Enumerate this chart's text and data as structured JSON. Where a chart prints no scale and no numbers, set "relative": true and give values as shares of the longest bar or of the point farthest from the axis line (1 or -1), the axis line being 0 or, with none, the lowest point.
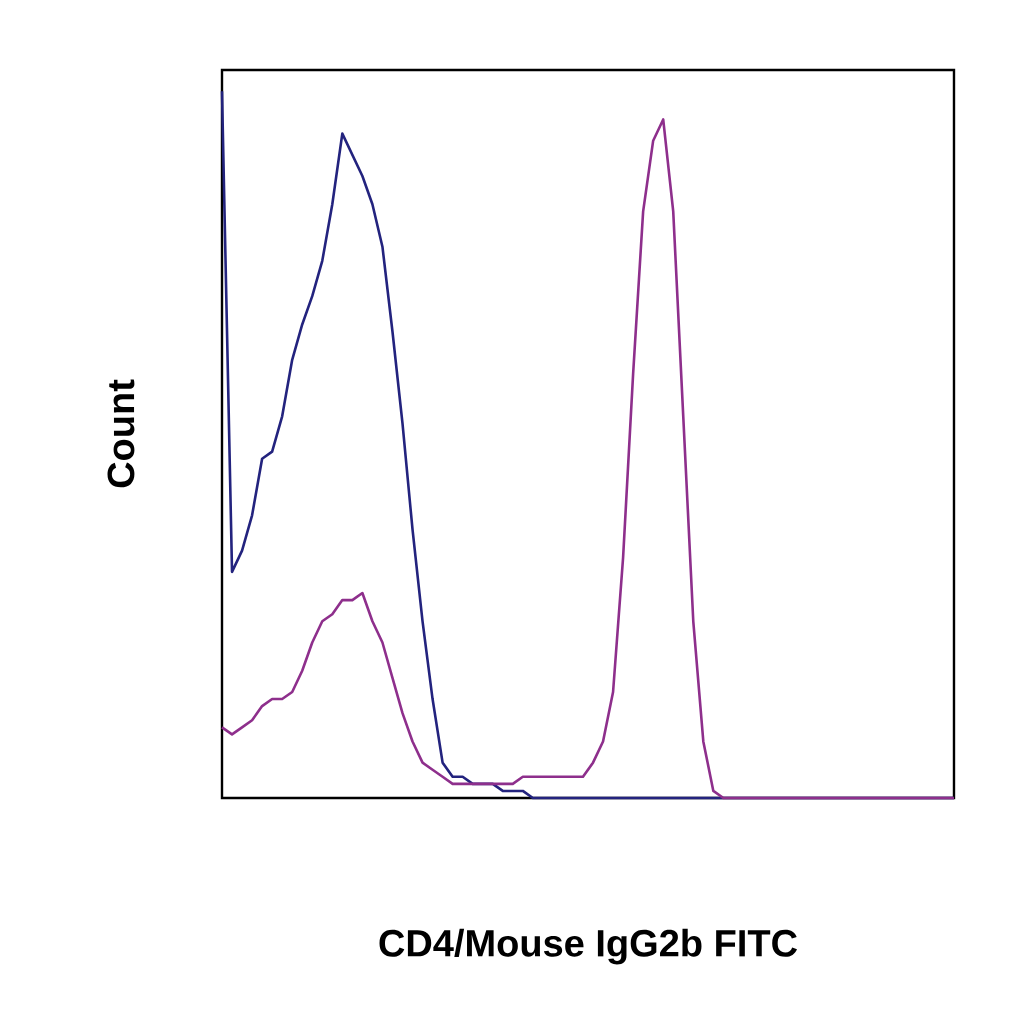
{
  "chart_data": {
    "type": "line",
    "relative": true,
    "xlabel": "CD4/Mouse IgG2b FITC",
    "ylabel": "Count",
    "categories": [
      null,
      null,
      null,
      null,
      null,
      null,
      null,
      null,
      null,
      null,
      null,
      null,
      null,
      null,
      null,
      null,
      null,
      null,
      null,
      null,
      null,
      null,
      null,
      null,
      null,
      null,
      null,
      null,
      null,
      null,
      null,
      null,
      null,
      null,
      null,
      null,
      null,
      null,
      null,
      null,
      null,
      null,
      null,
      null,
      null,
      null,
      null,
      null,
      null,
      null,
      null,
      null,
      null,
      null,
      null,
      null,
      null,
      null,
      null,
      null,
      null,
      null,
      null,
      null,
      null,
      null,
      null,
      null,
      null,
      null,
      null,
      null,
      null,
      null
    ],
    "series": [
      {
        "color": "#23237e",
        "values": [
          1.0,
          0.32,
          0.35,
          0.4,
          0.48,
          0.49,
          0.54,
          0.62,
          0.67,
          0.71,
          0.76,
          0.84,
          0.94,
          0.91,
          0.88,
          0.84,
          0.78,
          0.66,
          0.53,
          0.38,
          0.25,
          0.14,
          0.05,
          0.03,
          0.03,
          0.02,
          0.02,
          0.02,
          0.01,
          0.01,
          0.01,
          0.0,
          0,
          0,
          0,
          0,
          0,
          0,
          0,
          0,
          0,
          0,
          0,
          0,
          0,
          0,
          0,
          0,
          0,
          0,
          0,
          0,
          0,
          0,
          0,
          0,
          0,
          0,
          0,
          0,
          0,
          0,
          0,
          0,
          0,
          0,
          0,
          0,
          0,
          0,
          0,
          0,
          0,
          0
        ]
      },
      {
        "color": "#8e2f8c",
        "values": [
          0.1,
          0.09,
          0.1,
          0.11,
          0.13,
          0.14,
          0.14,
          0.15,
          0.18,
          0.22,
          0.25,
          0.26,
          0.28,
          0.28,
          0.29,
          0.25,
          0.22,
          0.17,
          0.12,
          0.08,
          0.05,
          0.04,
          0.03,
          0.02,
          0.02,
          0.02,
          0.02,
          0.02,
          0.02,
          0.02,
          0.03,
          0.03,
          0.03,
          0.03,
          0.03,
          0.03,
          0.03,
          0.05,
          0.08,
          0.15,
          0.34,
          0.6,
          0.83,
          0.93,
          0.96,
          0.83,
          0.54,
          0.25,
          0.08,
          0.01,
          0,
          0,
          0,
          0,
          0,
          0,
          0,
          0,
          0,
          0,
          0,
          0,
          0,
          0,
          0,
          0,
          0,
          0,
          0,
          0,
          0,
          0,
          0,
          0
        ]
      }
    ]
  }
}
